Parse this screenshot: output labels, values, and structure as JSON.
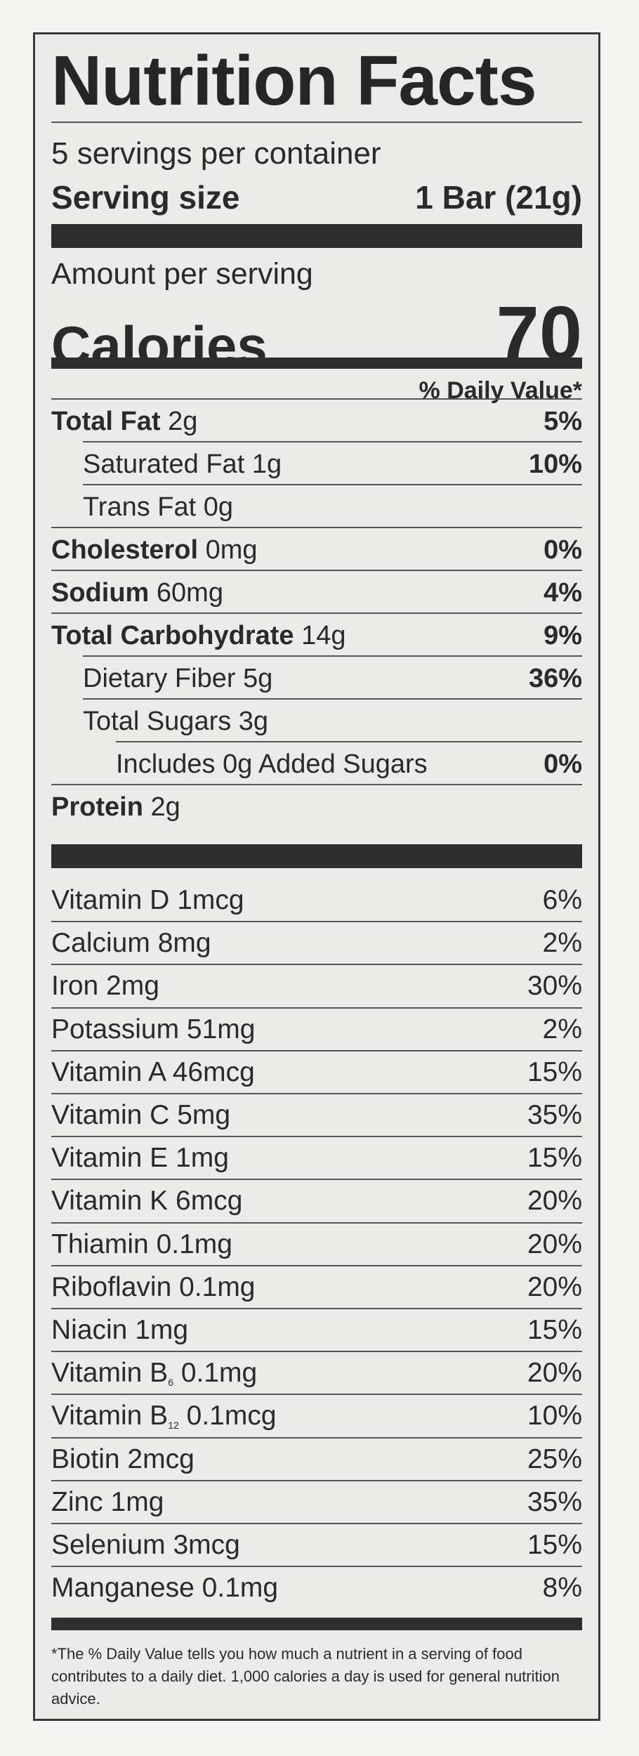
{
  "title": "Nutrition Facts",
  "servings_per_container": "5 servings per container",
  "serving_size_label": "Serving size",
  "serving_size_value": "1 Bar (21g)",
  "amount_per_serving": "Amount per serving",
  "calories_label": "Calories",
  "calories_value": "70",
  "daily_value_header": "% Daily Value*",
  "nutrients": [
    {
      "name": "Total Fat",
      "amount": "2g",
      "dv": "5%"
    },
    {
      "name": "Saturated Fat",
      "amount": "1g",
      "dv": "10%"
    },
    {
      "name": "Trans Fat",
      "amount": "0g",
      "dv": ""
    },
    {
      "name": "Cholesterol",
      "amount": "0mg",
      "dv": "0%"
    },
    {
      "name": "Sodium",
      "amount": "60mg",
      "dv": "4%"
    },
    {
      "name": "Total Carbohydrate",
      "amount": "14g",
      "dv": "9%"
    },
    {
      "name": "Dietary Fiber",
      "amount": "5g",
      "dv": "36%"
    },
    {
      "name": "Total Sugars",
      "amount": "3g",
      "dv": ""
    },
    {
      "name": "Includes 0g Added Sugars",
      "amount": "",
      "dv": "0%"
    },
    {
      "name": "Protein",
      "amount": "2g",
      "dv": ""
    }
  ],
  "vitamins": [
    {
      "name": "Vitamin D",
      "sub": "",
      "amount": "1mcg",
      "dv": "6%"
    },
    {
      "name": "Calcium",
      "sub": "",
      "amount": "8mg",
      "dv": "2%"
    },
    {
      "name": "Iron",
      "sub": "",
      "amount": "2mg",
      "dv": "30%"
    },
    {
      "name": "Potassium",
      "sub": "",
      "amount": "51mg",
      "dv": "2%"
    },
    {
      "name": "Vitamin A",
      "sub": "",
      "amount": "46mcg",
      "dv": "15%"
    },
    {
      "name": "Vitamin C",
      "sub": "",
      "amount": "5mg",
      "dv": "35%"
    },
    {
      "name": "Vitamin E",
      "sub": "",
      "amount": "1mg",
      "dv": "15%"
    },
    {
      "name": "Vitamin K",
      "sub": "",
      "amount": "6mcg",
      "dv": "20%"
    },
    {
      "name": "Thiamin",
      "sub": "",
      "amount": "0.1mg",
      "dv": "20%"
    },
    {
      "name": "Riboflavin",
      "sub": "",
      "amount": "0.1mg",
      "dv": "20%"
    },
    {
      "name": "Niacin",
      "sub": "",
      "amount": "1mg",
      "dv": "15%"
    },
    {
      "name": "Vitamin B",
      "sub": "6",
      "amount": "0.1mg",
      "dv": "20%"
    },
    {
      "name": "Vitamin B",
      "sub": "12",
      "amount": "0.1mcg",
      "dv": "10%"
    },
    {
      "name": "Biotin",
      "sub": "",
      "amount": "2mcg",
      "dv": "25%"
    },
    {
      "name": "Zinc",
      "sub": "",
      "amount": "1mg",
      "dv": "35%"
    },
    {
      "name": "Selenium",
      "sub": "",
      "amount": "3mcg",
      "dv": "15%"
    },
    {
      "name": "Manganese",
      "sub": "",
      "amount": "0.1mg",
      "dv": "8%"
    }
  ],
  "footnote": "*The % Daily Value tells you how much a nutrient in a serving of food contributes to a daily diet. 1,000 calories a day is used for general nutrition advice."
}
